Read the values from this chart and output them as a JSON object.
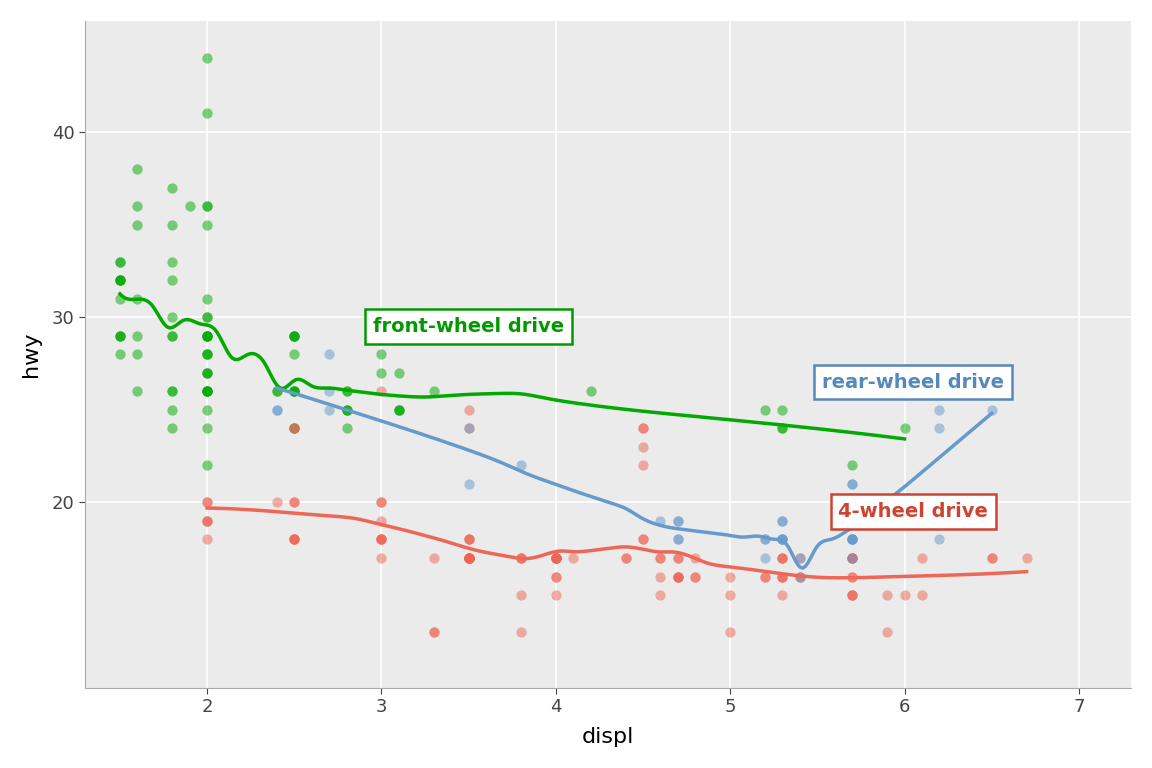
{
  "title": "",
  "xlabel": "displ",
  "ylabel": "hwy",
  "bg_color": "#EBEBEB",
  "grid_color": "#FFFFFF",
  "xlim": [
    1.3,
    7.3
  ],
  "ylim": [
    10,
    46
  ],
  "xticks": [
    2,
    3,
    4,
    5,
    6,
    7
  ],
  "yticks": [
    20,
    30,
    40
  ],
  "drive_colors": {
    "f": "#00AA00",
    "r": "#6699CC",
    "4": "#EE6655"
  },
  "alpha_points": 0.5,
  "labels": {
    "f": "front-wheel drive",
    "r": "rear-wheel drive",
    "4": "4-wheel drive"
  },
  "label_colors": {
    "f": "#009900",
    "r": "#5588BB",
    "4": "#CC4433"
  },
  "label_positions": {
    "f": [
      3.5,
      29.5
    ],
    "r": [
      6.05,
      26.5
    ],
    "4": [
      6.05,
      19.5
    ]
  },
  "mpg_data": [
    [
      1.8,
      29,
      "f"
    ],
    [
      1.8,
      29,
      "f"
    ],
    [
      2.0,
      31,
      "f"
    ],
    [
      2.0,
      30,
      "f"
    ],
    [
      2.8,
      26,
      "f"
    ],
    [
      2.8,
      26,
      "f"
    ],
    [
      3.1,
      27,
      "f"
    ],
    [
      1.8,
      26,
      "f"
    ],
    [
      1.8,
      25,
      "f"
    ],
    [
      2.0,
      28,
      "f"
    ],
    [
      2.0,
      27,
      "f"
    ],
    [
      2.8,
      25,
      "f"
    ],
    [
      2.8,
      25,
      "f"
    ],
    [
      3.1,
      25,
      "f"
    ],
    [
      3.1,
      25,
      "f"
    ],
    [
      2.8,
      24,
      "f"
    ],
    [
      3.1,
      25,
      "f"
    ],
    [
      4.2,
      26,
      "f"
    ],
    [
      5.3,
      25,
      "f"
    ],
    [
      5.3,
      24,
      "f"
    ],
    [
      5.3,
      24,
      "f"
    ],
    [
      5.7,
      22,
      "f"
    ],
    [
      6.0,
      24,
      "f"
    ],
    [
      5.2,
      25,
      "f"
    ],
    [
      2.4,
      26,
      "f"
    ],
    [
      2.4,
      26,
      "f"
    ],
    [
      3.0,
      27,
      "f"
    ],
    [
      3.0,
      28,
      "f"
    ],
    [
      3.3,
      26,
      "f"
    ],
    [
      1.8,
      33,
      "f"
    ],
    [
      1.8,
      35,
      "f"
    ],
    [
      1.8,
      37,
      "f"
    ],
    [
      2.0,
      35,
      "f"
    ],
    [
      2.0,
      29,
      "f"
    ],
    [
      2.0,
      30,
      "f"
    ],
    [
      2.0,
      28,
      "f"
    ],
    [
      2.0,
      29,
      "f"
    ],
    [
      2.0,
      26,
      "f"
    ],
    [
      2.0,
      26,
      "f"
    ],
    [
      2.0,
      27,
      "f"
    ],
    [
      2.0,
      29,
      "f"
    ],
    [
      2.0,
      44,
      "f"
    ],
    [
      2.0,
      41,
      "f"
    ],
    [
      2.0,
      36,
      "f"
    ],
    [
      2.0,
      36,
      "f"
    ],
    [
      2.0,
      29,
      "f"
    ],
    [
      2.0,
      28,
      "f"
    ],
    [
      2.0,
      26,
      "f"
    ],
    [
      2.5,
      29,
      "f"
    ],
    [
      2.5,
      29,
      "f"
    ],
    [
      1.6,
      29,
      "f"
    ],
    [
      1.6,
      31,
      "f"
    ],
    [
      1.6,
      38,
      "f"
    ],
    [
      1.6,
      36,
      "f"
    ],
    [
      1.6,
      35,
      "f"
    ],
    [
      1.8,
      26,
      "f"
    ],
    [
      1.8,
      24,
      "f"
    ],
    [
      2.0,
      24,
      "f"
    ],
    [
      2.0,
      22,
      "f"
    ],
    [
      2.0,
      26,
      "f"
    ],
    [
      2.5,
      26,
      "f"
    ],
    [
      2.5,
      24,
      "f"
    ],
    [
      2.5,
      26,
      "f"
    ],
    [
      2.5,
      24,
      "f"
    ],
    [
      2.5,
      29,
      "f"
    ],
    [
      2.5,
      29,
      "f"
    ],
    [
      1.5,
      32,
      "f"
    ],
    [
      1.5,
      32,
      "f"
    ],
    [
      1.5,
      33,
      "f"
    ],
    [
      1.5,
      32,
      "f"
    ],
    [
      1.5,
      33,
      "f"
    ],
    [
      1.5,
      32,
      "f"
    ],
    [
      1.5,
      29,
      "f"
    ],
    [
      1.5,
      29,
      "f"
    ],
    [
      1.5,
      29,
      "f"
    ],
    [
      1.5,
      28,
      "f"
    ],
    [
      1.5,
      31,
      "f"
    ],
    [
      1.8,
      32,
      "f"
    ],
    [
      1.8,
      30,
      "f"
    ],
    [
      2.0,
      25,
      "f"
    ],
    [
      2.0,
      26,
      "f"
    ],
    [
      2.8,
      25,
      "f"
    ],
    [
      1.9,
      36,
      "f"
    ],
    [
      2.0,
      29,
      "f"
    ],
    [
      2.5,
      26,
      "f"
    ],
    [
      1.6,
      28,
      "f"
    ],
    [
      1.6,
      26,
      "f"
    ],
    [
      2.0,
      27,
      "f"
    ],
    [
      2.5,
      28,
      "f"
    ],
    [
      2.5,
      26,
      "f"
    ],
    [
      2.0,
      20,
      "4"
    ],
    [
      2.0,
      20,
      "4"
    ],
    [
      2.5,
      20,
      "4"
    ],
    [
      2.5,
      20,
      "4"
    ],
    [
      3.0,
      20,
      "4"
    ],
    [
      3.0,
      20,
      "4"
    ],
    [
      3.5,
      18,
      "4"
    ],
    [
      3.5,
      17,
      "4"
    ],
    [
      3.3,
      17,
      "4"
    ],
    [
      4.0,
      17,
      "4"
    ],
    [
      4.0,
      16,
      "4"
    ],
    [
      4.0,
      17,
      "4"
    ],
    [
      4.6,
      17,
      "4"
    ],
    [
      4.6,
      16,
      "4"
    ],
    [
      5.4,
      17,
      "4"
    ],
    [
      5.4,
      16,
      "4"
    ],
    [
      5.4,
      16,
      "4"
    ],
    [
      4.0,
      17,
      "4"
    ],
    [
      4.0,
      17,
      "4"
    ],
    [
      4.6,
      17,
      "4"
    ],
    [
      5.0,
      16,
      "4"
    ],
    [
      2.0,
      19,
      "4"
    ],
    [
      2.0,
      19,
      "4"
    ],
    [
      2.0,
      18,
      "4"
    ],
    [
      2.0,
      19,
      "4"
    ],
    [
      2.5,
      18,
      "4"
    ],
    [
      2.5,
      18,
      "4"
    ],
    [
      3.5,
      17,
      "4"
    ],
    [
      3.5,
      17,
      "4"
    ],
    [
      2.5,
      18,
      "4"
    ],
    [
      2.5,
      18,
      "4"
    ],
    [
      3.0,
      17,
      "4"
    ],
    [
      3.0,
      18,
      "4"
    ],
    [
      3.5,
      17,
      "4"
    ],
    [
      3.5,
      17,
      "4"
    ],
    [
      4.7,
      17,
      "4"
    ],
    [
      4.7,
      16,
      "4"
    ],
    [
      4.7,
      17,
      "4"
    ],
    [
      5.7,
      15,
      "4"
    ],
    [
      6.1,
      15,
      "4"
    ],
    [
      2.5,
      24,
      "4"
    ],
    [
      2.5,
      24,
      "4"
    ],
    [
      3.0,
      26,
      "4"
    ],
    [
      3.5,
      25,
      "4"
    ],
    [
      3.5,
      24,
      "4"
    ],
    [
      4.5,
      24,
      "4"
    ],
    [
      4.5,
      24,
      "4"
    ],
    [
      4.5,
      23,
      "4"
    ],
    [
      4.5,
      22,
      "4"
    ],
    [
      5.3,
      16,
      "4"
    ],
    [
      5.3,
      16,
      "4"
    ],
    [
      5.7,
      16,
      "4"
    ],
    [
      6.5,
      17,
      "4"
    ],
    [
      4.1,
      17,
      "4"
    ],
    [
      5.3,
      17,
      "4"
    ],
    [
      5.3,
      17,
      "4"
    ],
    [
      5.7,
      16,
      "4"
    ],
    [
      6.0,
      15,
      "4"
    ],
    [
      5.3,
      15,
      "4"
    ],
    [
      5.3,
      17,
      "4"
    ],
    [
      5.7,
      17,
      "4"
    ],
    [
      6.5,
      17,
      "4"
    ],
    [
      2.4,
      20,
      "4"
    ],
    [
      3.0,
      19,
      "4"
    ],
    [
      3.0,
      18,
      "4"
    ],
    [
      3.5,
      17,
      "4"
    ],
    [
      3.5,
      17,
      "4"
    ],
    [
      3.5,
      18,
      "4"
    ],
    [
      4.5,
      18,
      "4"
    ],
    [
      4.5,
      18,
      "4"
    ],
    [
      5.7,
      17,
      "4"
    ],
    [
      6.1,
      17,
      "4"
    ],
    [
      3.0,
      18,
      "4"
    ],
    [
      3.8,
      17,
      "4"
    ],
    [
      4.0,
      16,
      "4"
    ],
    [
      4.0,
      17,
      "4"
    ],
    [
      4.6,
      15,
      "4"
    ],
    [
      5.0,
      15,
      "4"
    ],
    [
      3.0,
      18,
      "4"
    ],
    [
      3.5,
      18,
      "4"
    ],
    [
      3.5,
      17,
      "4"
    ],
    [
      3.5,
      17,
      "4"
    ],
    [
      3.8,
      15,
      "4"
    ],
    [
      3.8,
      17,
      "4"
    ],
    [
      3.8,
      17,
      "4"
    ],
    [
      4.0,
      17,
      "4"
    ],
    [
      4.0,
      17,
      "4"
    ],
    [
      4.4,
      17,
      "4"
    ],
    [
      4.4,
      17,
      "4"
    ],
    [
      4.8,
      16,
      "4"
    ],
    [
      4.8,
      16,
      "4"
    ],
    [
      4.8,
      17,
      "4"
    ],
    [
      5.3,
      16,
      "4"
    ],
    [
      5.7,
      15,
      "4"
    ],
    [
      5.7,
      17,
      "4"
    ],
    [
      5.7,
      17,
      "4"
    ],
    [
      6.7,
      17,
      "4"
    ],
    [
      3.3,
      13,
      "4"
    ],
    [
      3.3,
      13,
      "4"
    ],
    [
      3.8,
      13,
      "4"
    ],
    [
      4.0,
      15,
      "4"
    ],
    [
      5.0,
      13,
      "4"
    ],
    [
      5.9,
      13,
      "4"
    ],
    [
      4.7,
      16,
      "4"
    ],
    [
      4.7,
      16,
      "4"
    ],
    [
      4.7,
      16,
      "4"
    ],
    [
      5.2,
      16,
      "4"
    ],
    [
      5.2,
      16,
      "4"
    ],
    [
      5.7,
      15,
      "4"
    ],
    [
      5.9,
      15,
      "4"
    ],
    [
      2.7,
      26,
      "r"
    ],
    [
      2.7,
      25,
      "r"
    ],
    [
      2.7,
      28,
      "r"
    ],
    [
      3.8,
      22,
      "r"
    ],
    [
      5.7,
      17,
      "r"
    ],
    [
      5.7,
      18,
      "r"
    ],
    [
      5.7,
      18,
      "r"
    ],
    [
      4.7,
      18,
      "r"
    ],
    [
      4.7,
      18,
      "r"
    ],
    [
      4.7,
      19,
      "r"
    ],
    [
      4.7,
      19,
      "r"
    ],
    [
      5.2,
      17,
      "r"
    ],
    [
      5.2,
      18,
      "r"
    ],
    [
      5.2,
      18,
      "r"
    ],
    [
      5.7,
      18,
      "r"
    ],
    [
      5.9,
      20,
      "r"
    ],
    [
      4.6,
      19,
      "r"
    ],
    [
      5.4,
      16,
      "r"
    ],
    [
      5.4,
      17,
      "r"
    ],
    [
      5.7,
      21,
      "r"
    ],
    [
      6.5,
      25,
      "r"
    ],
    [
      2.4,
      25,
      "r"
    ],
    [
      2.4,
      25,
      "r"
    ],
    [
      3.5,
      24,
      "r"
    ],
    [
      3.5,
      21,
      "r"
    ],
    [
      5.3,
      19,
      "r"
    ],
    [
      5.3,
      18,
      "r"
    ],
    [
      5.7,
      18,
      "r"
    ],
    [
      6.2,
      25,
      "r"
    ],
    [
      5.3,
      18,
      "r"
    ],
    [
      5.3,
      19,
      "r"
    ],
    [
      5.3,
      18,
      "r"
    ],
    [
      5.3,
      18,
      "r"
    ],
    [
      5.7,
      18,
      "r"
    ],
    [
      6.2,
      18,
      "r"
    ],
    [
      5.7,
      21,
      "r"
    ],
    [
      6.2,
      24,
      "r"
    ]
  ]
}
